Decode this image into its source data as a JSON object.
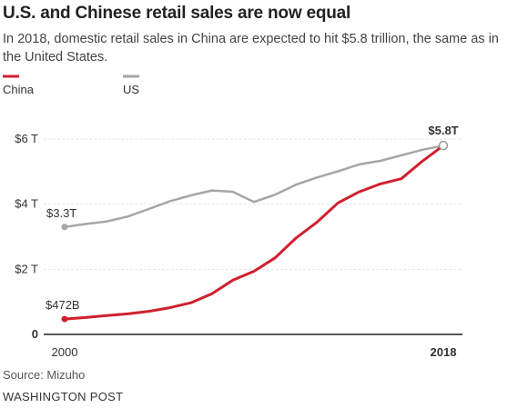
{
  "title": "U.S. and Chinese retail sales are now equal",
  "subtitle": "In 2018, domestic retail sales in China are expected to hit $5.8 trillion, the same as in the United States.",
  "source": "Source: Mizuho",
  "credit": "WASHINGTON POST",
  "chart_data": {
    "type": "line",
    "x": [
      2000,
      2001,
      2002,
      2003,
      2004,
      2005,
      2006,
      2007,
      2008,
      2009,
      2010,
      2011,
      2012,
      2013,
      2014,
      2015,
      2016,
      2017,
      2018
    ],
    "series": [
      {
        "name": "China",
        "color": "#d0202e",
        "values": [
          0.472,
          0.52,
          0.58,
          0.63,
          0.71,
          0.82,
          0.97,
          1.25,
          1.67,
          1.94,
          2.35,
          2.96,
          3.45,
          4.04,
          4.38,
          4.62,
          4.78,
          5.32,
          5.8
        ]
      },
      {
        "name": "US",
        "color": "#a6a6a6",
        "values": [
          3.3,
          3.39,
          3.47,
          3.62,
          3.85,
          4.09,
          4.27,
          4.42,
          4.38,
          4.07,
          4.29,
          4.6,
          4.82,
          5.01,
          5.22,
          5.33,
          5.5,
          5.67,
          5.8
        ]
      }
    ],
    "annotations": {
      "China": "$472B",
      "US": "$3.3T",
      "end": "$5.8T"
    },
    "ylim": [
      0,
      6
    ],
    "yticks": [
      {
        "value": 6,
        "label": "$6 T"
      },
      {
        "value": 4,
        "label": "$4 T"
      },
      {
        "value": 2,
        "label": "$2 T"
      },
      {
        "value": 0,
        "label": "0"
      }
    ],
    "xticks": [
      {
        "value": 2000,
        "label": "2000",
        "bold": false
      },
      {
        "value": 2018,
        "label": "2018",
        "bold": true
      }
    ],
    "grid": true,
    "legend": "top-left"
  }
}
